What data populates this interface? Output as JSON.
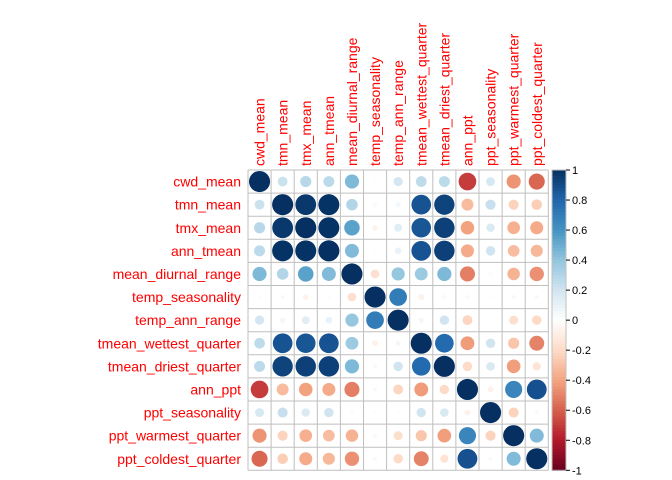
{
  "chart_data": {
    "type": "heatmap",
    "style": "circle",
    "label_color": "#ff0000",
    "grid_color": "#bfbfbf",
    "variables": [
      "cwd_mean",
      "tmn_mean",
      "tmx_mean",
      "ann_tmean",
      "mean_diurnal_range",
      "temp_seasonality",
      "temp_ann_range",
      "tmean_wettest_quarter",
      "tmean_driest_quarter",
      "ann_ppt",
      "ppt_seasonality",
      "ppt_warmest_quarter",
      "ppt_coldest_quarter"
    ],
    "matrix": [
      [
        1.0,
        0.22,
        0.28,
        0.27,
        0.45,
        0.02,
        0.19,
        0.26,
        0.27,
        -0.7,
        0.18,
        -0.45,
        -0.58
      ],
      [
        0.22,
        1.0,
        0.97,
        0.99,
        0.3,
        0.04,
        0.06,
        0.87,
        0.93,
        -0.32,
        0.23,
        -0.23,
        -0.25
      ],
      [
        0.28,
        0.97,
        1.0,
        0.99,
        0.54,
        -0.07,
        0.14,
        0.86,
        0.94,
        -0.41,
        0.16,
        -0.36,
        -0.38
      ],
      [
        0.27,
        0.99,
        0.99,
        1.0,
        0.44,
        -0.02,
        0.1,
        0.87,
        0.94,
        -0.38,
        0.2,
        -0.31,
        -0.33
      ],
      [
        0.45,
        0.3,
        0.54,
        0.44,
        1.0,
        -0.17,
        0.39,
        0.37,
        0.45,
        -0.51,
        -0.03,
        -0.35,
        -0.46
      ],
      [
        0.02,
        0.04,
        -0.07,
        -0.02,
        -0.17,
        1.0,
        0.7,
        -0.08,
        0.04,
        0.04,
        -0.02,
        0.04,
        0.04
      ],
      [
        0.19,
        0.06,
        0.14,
        0.1,
        0.39,
        0.7,
        1.0,
        0.06,
        0.2,
        -0.22,
        -0.02,
        -0.18,
        -0.2
      ],
      [
        0.26,
        0.87,
        0.86,
        0.87,
        0.37,
        -0.08,
        0.06,
        1.0,
        0.78,
        -0.43,
        0.2,
        -0.28,
        -0.5
      ],
      [
        0.27,
        0.93,
        0.94,
        0.94,
        0.45,
        0.04,
        0.2,
        0.78,
        1.0,
        -0.2,
        0.17,
        -0.42,
        -0.15
      ],
      [
        -0.7,
        -0.32,
        -0.41,
        -0.38,
        -0.51,
        0.04,
        -0.22,
        -0.43,
        -0.2,
        1.0,
        -0.08,
        0.66,
        0.88
      ],
      [
        0.18,
        0.23,
        0.16,
        0.2,
        -0.03,
        -0.02,
        -0.02,
        0.2,
        0.17,
        -0.08,
        1.0,
        -0.23,
        0.04
      ],
      [
        -0.45,
        -0.23,
        -0.36,
        -0.31,
        -0.35,
        0.04,
        -0.18,
        -0.28,
        -0.42,
        0.66,
        -0.23,
        1.0,
        0.44
      ],
      [
        -0.58,
        -0.25,
        -0.38,
        -0.33,
        -0.46,
        0.04,
        -0.2,
        -0.5,
        -0.15,
        0.88,
        0.04,
        0.44,
        1.0
      ]
    ],
    "colorbar": {
      "ticks": [
        "1",
        "0.8",
        "0.6",
        "0.4",
        "0.2",
        "0",
        "-0.2",
        "-0.4",
        "-0.6",
        "-0.8",
        "-1"
      ],
      "range": [
        -1,
        1
      ]
    }
  }
}
